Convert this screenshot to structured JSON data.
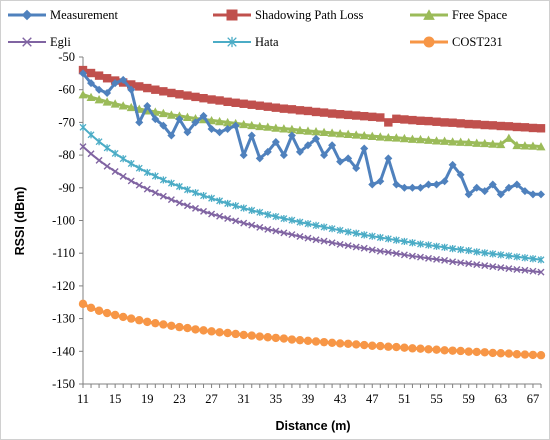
{
  "chart_data": {
    "type": "line",
    "title": "",
    "xlabel": "Distance (m)",
    "ylabel": "RSSI (dBm)",
    "xlim": [
      11,
      68
    ],
    "ylim": [
      -150,
      -50
    ],
    "x_tick_labels": [
      "11",
      "15",
      "19",
      "23",
      "27",
      "31",
      "35",
      "39",
      "43",
      "47",
      "51",
      "55",
      "59",
      "63",
      "67"
    ],
    "y_tick_labels": [
      "-50",
      "-60",
      "-70",
      "-80",
      "-90",
      "-100",
      "-110",
      "-120",
      "-130",
      "-140",
      "-150"
    ],
    "grid": false,
    "legend_position": "top",
    "x": [
      11,
      12,
      13,
      14,
      15,
      16,
      17,
      18,
      19,
      20,
      21,
      22,
      23,
      24,
      25,
      26,
      27,
      28,
      29,
      30,
      31,
      32,
      33,
      34,
      35,
      36,
      37,
      38,
      39,
      40,
      41,
      42,
      43,
      44,
      45,
      46,
      47,
      48,
      49,
      50,
      51,
      52,
      53,
      54,
      55,
      56,
      57,
      58,
      59,
      60,
      61,
      62,
      63,
      64,
      65,
      66,
      67,
      68
    ],
    "series": [
      {
        "name": "Measurement",
        "color": "#4f81bd",
        "marker": "diamond",
        "values": [
          -55,
          -58,
          -60,
          -61,
          -58,
          -57,
          -60,
          -70,
          -65,
          -69,
          -71,
          -74,
          -69,
          -73,
          -70,
          -68,
          -72,
          -73,
          -72,
          -71,
          -80,
          -74,
          -81,
          -79,
          -76,
          -80,
          -74,
          -79,
          -77,
          -75,
          -80,
          -77,
          -82,
          -81,
          -84,
          -78,
          -89,
          -88,
          -81,
          -89,
          -90,
          -90,
          -90,
          -89,
          -89,
          -88,
          -83,
          -86,
          -92,
          -90,
          -91,
          -89,
          -92,
          -90,
          -89,
          -91,
          -92,
          -92
        ]
      },
      {
        "name": "Shadowing Path Loss",
        "color": "#c0504d",
        "marker": "square",
        "values": [
          -54,
          -54.9,
          -55.7,
          -56.5,
          -57.2,
          -57.8,
          -58.4,
          -59,
          -59.5,
          -60,
          -60.5,
          -61,
          -61.4,
          -61.8,
          -62.2,
          -62.6,
          -63,
          -63.3,
          -63.7,
          -64,
          -64.3,
          -64.6,
          -64.9,
          -65.2,
          -65.5,
          -65.8,
          -66,
          -66.3,
          -66.5,
          -66.8,
          -67,
          -67.3,
          -67.5,
          -67.7,
          -67.9,
          -68.1,
          -68.3,
          -68.5,
          -70,
          -68.9,
          -69.1,
          -69.3,
          -69.5,
          -69.6,
          -69.8,
          -70,
          -70.1,
          -70.3,
          -70.5,
          -70.6,
          -70.8,
          -70.9,
          -71.1,
          -71.2,
          -71.4,
          -71.5,
          -71.7,
          -71.8
        ]
      },
      {
        "name": "Free Space",
        "color": "#9bbb59",
        "marker": "triangle",
        "values": [
          -61.5,
          -62.3,
          -63,
          -63.7,
          -64.3,
          -64.9,
          -65.4,
          -65.9,
          -66.4,
          -66.8,
          -67.2,
          -67.7,
          -68,
          -68.4,
          -68.8,
          -69.1,
          -69.4,
          -69.7,
          -70,
          -70.3,
          -70.6,
          -70.9,
          -71.2,
          -71.4,
          -71.7,
          -71.9,
          -72.1,
          -72.4,
          -72.6,
          -72.8,
          -73,
          -73.2,
          -73.4,
          -73.6,
          -73.8,
          -74,
          -74.2,
          -74.4,
          -74.6,
          -74.7,
          -74.9,
          -75.1,
          -75.2,
          -75.4,
          -75.6,
          -75.7,
          -75.9,
          -76,
          -76.1,
          -76.3,
          -76.4,
          -76.6,
          -76.7,
          -74.8,
          -77,
          -77.1,
          -77.2,
          -77.4
        ]
      },
      {
        "name": "Egli",
        "color": "#8064a2",
        "marker": "x",
        "values": [
          -77.4,
          -79.6,
          -81.6,
          -83.4,
          -85,
          -86.5,
          -87.9,
          -89.2,
          -90.4,
          -91.5,
          -92.6,
          -93.6,
          -94.6,
          -95.5,
          -96.3,
          -97.2,
          -98,
          -98.7,
          -99.4,
          -100.1,
          -100.8,
          -101.4,
          -102.1,
          -102.7,
          -103.2,
          -103.8,
          -104.3,
          -104.9,
          -105.4,
          -105.9,
          -106.3,
          -106.8,
          -107.3,
          -107.7,
          -108.1,
          -108.5,
          -109,
          -109.4,
          -109.7,
          -110.1,
          -110.5,
          -110.9,
          -111.2,
          -111.6,
          -111.9,
          -112.2,
          -112.6,
          -112.9,
          -113.2,
          -113.5,
          -113.8,
          -114.1,
          -114.4,
          -114.7,
          -115,
          -115.2,
          -115.5,
          -115.8
        ]
      },
      {
        "name": "Hata",
        "color": "#4bacc6",
        "marker": "star",
        "values": [
          -71.5,
          -73.8,
          -75.9,
          -77.8,
          -79.5,
          -81.1,
          -82.6,
          -84,
          -85.3,
          -86.4,
          -87.6,
          -88.6,
          -89.6,
          -90.6,
          -91.5,
          -92.4,
          -93.2,
          -94,
          -94.8,
          -95.5,
          -96.2,
          -96.9,
          -97.5,
          -98.2,
          -98.8,
          -99.4,
          -99.9,
          -100.5,
          -101,
          -101.5,
          -102,
          -102.5,
          -103,
          -103.5,
          -103.9,
          -104.4,
          -104.8,
          -105.2,
          -105.6,
          -106,
          -106.4,
          -106.8,
          -107.2,
          -107.5,
          -107.9,
          -108.2,
          -108.6,
          -108.9,
          -109.2,
          -109.6,
          -109.9,
          -110.2,
          -110.5,
          -110.8,
          -111.1,
          -111.4,
          -111.7,
          -112
        ]
      },
      {
        "name": "COST231",
        "color": "#f79646",
        "marker": "circle",
        "values": [
          -125.5,
          -126.7,
          -127.6,
          -128.3,
          -128.9,
          -129.5,
          -130,
          -130.5,
          -131,
          -131.4,
          -131.8,
          -132.2,
          -132.6,
          -132.9,
          -133.3,
          -133.6,
          -133.9,
          -134.2,
          -134.4,
          -134.7,
          -135,
          -135.2,
          -135.5,
          -135.7,
          -135.9,
          -136.1,
          -136.4,
          -136.6,
          -136.8,
          -137,
          -137.2,
          -137.4,
          -137.6,
          -137.7,
          -137.9,
          -138.1,
          -138.3,
          -138.4,
          -138.6,
          -138.7,
          -138.9,
          -139.1,
          -139.2,
          -139.4,
          -139.5,
          -139.7,
          -139.8,
          -139.9,
          -140.1,
          -140.2,
          -140.3,
          -140.5,
          -140.6,
          -140.7,
          -140.9,
          -141,
          -141.1,
          -141.2
        ]
      }
    ]
  }
}
